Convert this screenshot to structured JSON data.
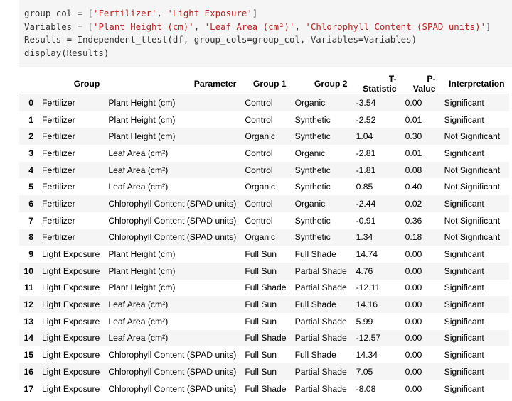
{
  "code": {
    "line1": [
      "group_col",
      " = [",
      "'Fertilizer'",
      ", ",
      "'Light Exposure'",
      "]"
    ],
    "line2": [
      "Variables",
      " = [",
      "'Plant Height (cm)'",
      ", ",
      "'Leaf Area (cm²)'",
      ", ",
      "'Chlorophyll Content (SPAD units)'",
      "]"
    ],
    "line3": "Results = Independent_ttest(df, group_cols=group_col, Variables=Variables)",
    "line4": "display(Results)"
  },
  "table": {
    "columns": [
      "",
      "Group",
      "Parameter",
      "Group 1",
      "Group 2",
      "T-Statistic",
      "P-Value",
      "Interpretation"
    ],
    "rows": [
      [
        "0",
        "Fertilizer",
        "Plant Height (cm)",
        "Control",
        "Organic",
        "-3.54",
        "0.00",
        "Significant"
      ],
      [
        "1",
        "Fertilizer",
        "Plant Height (cm)",
        "Control",
        "Synthetic",
        "-2.52",
        "0.01",
        "Significant"
      ],
      [
        "2",
        "Fertilizer",
        "Plant Height (cm)",
        "Organic",
        "Synthetic",
        "1.04",
        "0.30",
        "Not Significant"
      ],
      [
        "3",
        "Fertilizer",
        "Leaf Area (cm²)",
        "Control",
        "Organic",
        "-2.81",
        "0.01",
        "Significant"
      ],
      [
        "4",
        "Fertilizer",
        "Leaf Area (cm²)",
        "Control",
        "Synthetic",
        "-1.81",
        "0.08",
        "Not Significant"
      ],
      [
        "5",
        "Fertilizer",
        "Leaf Area (cm²)",
        "Organic",
        "Synthetic",
        "0.85",
        "0.40",
        "Not Significant"
      ],
      [
        "6",
        "Fertilizer",
        "Chlorophyll Content (SPAD units)",
        "Control",
        "Organic",
        "-2.44",
        "0.02",
        "Significant"
      ],
      [
        "7",
        "Fertilizer",
        "Chlorophyll Content (SPAD units)",
        "Control",
        "Synthetic",
        "-0.91",
        "0.36",
        "Not Significant"
      ],
      [
        "8",
        "Fertilizer",
        "Chlorophyll Content (SPAD units)",
        "Organic",
        "Synthetic",
        "1.34",
        "0.18",
        "Not Significant"
      ],
      [
        "9",
        "Light Exposure",
        "Plant Height (cm)",
        "Full Sun",
        "Full Shade",
        "14.74",
        "0.00",
        "Significant"
      ],
      [
        "10",
        "Light Exposure",
        "Plant Height (cm)",
        "Full Sun",
        "Partial Shade",
        "4.76",
        "0.00",
        "Significant"
      ],
      [
        "11",
        "Light Exposure",
        "Plant Height (cm)",
        "Full Shade",
        "Partial Shade",
        "-12.11",
        "0.00",
        "Significant"
      ],
      [
        "12",
        "Light Exposure",
        "Leaf Area (cm²)",
        "Full Sun",
        "Full Shade",
        "14.16",
        "0.00",
        "Significant"
      ],
      [
        "13",
        "Light Exposure",
        "Leaf Area (cm²)",
        "Full Sun",
        "Partial Shade",
        "5.99",
        "0.00",
        "Significant"
      ],
      [
        "14",
        "Light Exposure",
        "Leaf Area (cm²)",
        "Full Shade",
        "Partial Shade",
        "-12.57",
        "0.00",
        "Significant"
      ],
      [
        "15",
        "Light Exposure",
        "Chlorophyll Content (SPAD units)",
        "Full Sun",
        "Full Shade",
        "14.34",
        "0.00",
        "Significant"
      ],
      [
        "16",
        "Light Exposure",
        "Chlorophyll Content (SPAD units)",
        "Full Sun",
        "Partial Shade",
        "7.05",
        "0.00",
        "Significant"
      ],
      [
        "17",
        "Light Exposure",
        "Chlorophyll Content (SPAD units)",
        "Full Shade",
        "Partial Shade",
        "-8.08",
        "0.00",
        "Significant"
      ]
    ]
  },
  "colors": {
    "string": "#ba2121",
    "operator": "#7a7a7a",
    "code_bg": "#f5f5f5",
    "stripe": "#f5f5f5"
  }
}
